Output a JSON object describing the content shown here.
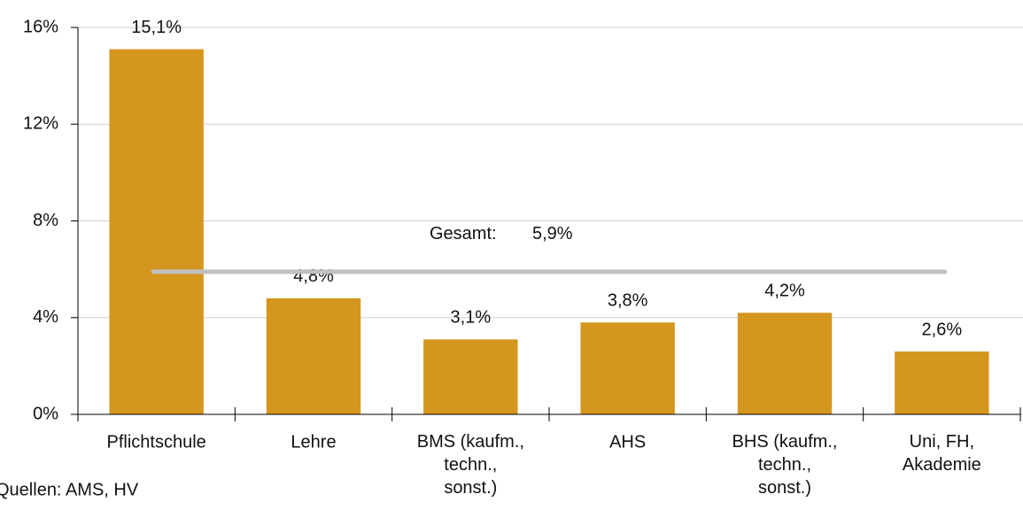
{
  "chart_data": {
    "type": "bar",
    "categories": [
      "Pflichtschule",
      "Lehre",
      "BMS (kaufm.,\ntechn.,\nsonst.)",
      "AHS",
      "BHS (kaufm.,\ntechn.,\nsonst.)",
      "Uni, FH,\nAkademie"
    ],
    "values": [
      15.1,
      4.8,
      3.1,
      3.8,
      4.2,
      2.6
    ],
    "value_labels": [
      "15,1%",
      "4,8%",
      "3,1%",
      "3,8%",
      "4,2%",
      "2,6%"
    ],
    "color": "#d4961e",
    "ylim": [
      0,
      16
    ],
    "yticks": [
      {
        "value": 0,
        "label": "0%"
      },
      {
        "value": 4,
        "label": "4%"
      },
      {
        "value": 8,
        "label": "8%"
      },
      {
        "value": 12,
        "label": "12%"
      },
      {
        "value": 16,
        "label": "16%"
      }
    ],
    "grid": true,
    "reference_line": {
      "label": "Gesamt:",
      "value": 5.9,
      "value_label": "5,9%",
      "color": "#c0c0c0"
    },
    "source": "Quellen: AMS, HV"
  }
}
